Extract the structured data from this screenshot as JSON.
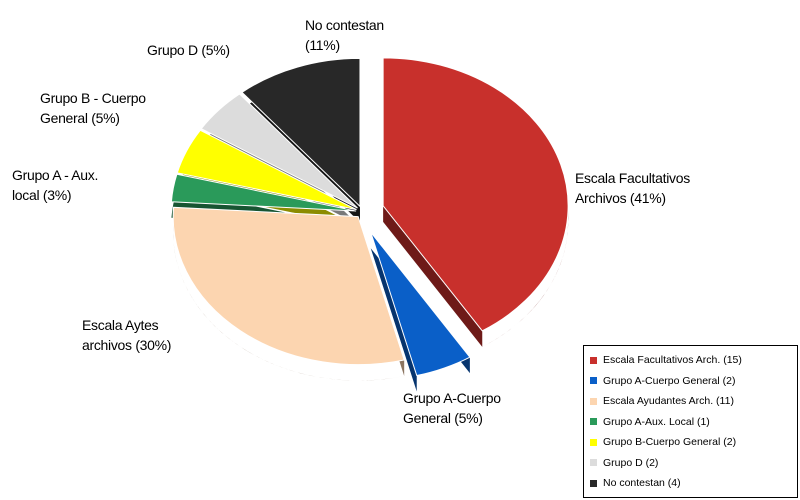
{
  "chart_data": {
    "type": "pie",
    "labels": [
      "Escala Facultativos Archivos (41%)",
      "Grupo A-Cuerpo General (5%)",
      "Escala Aytes archivos (30%)",
      "Grupo A - Aux. local (3%)",
      "Grupo B - Cuerpo General (5%)",
      "Grupo D (5%)",
      "No contestan (11%)"
    ],
    "values": [
      41,
      5,
      30,
      3,
      5,
      5,
      11
    ],
    "colors": [
      "#c8302c",
      "#0a5fc8",
      "#fcd5b0",
      "#2a9a5a",
      "#ffff00",
      "#dcdcdc",
      "#282828"
    ],
    "legend": [
      "Escala Facultativos Arch. (15)",
      "Grupo A-Cuerpo General (2)",
      "Escala Ayudantes Arch. (11)",
      "Grupo A-Aux. Local (1)",
      "Grupo B-Cuerpo General (2)",
      "Grupo D (2)",
      "No contestan (4)"
    ],
    "legend_position": "lower right"
  }
}
